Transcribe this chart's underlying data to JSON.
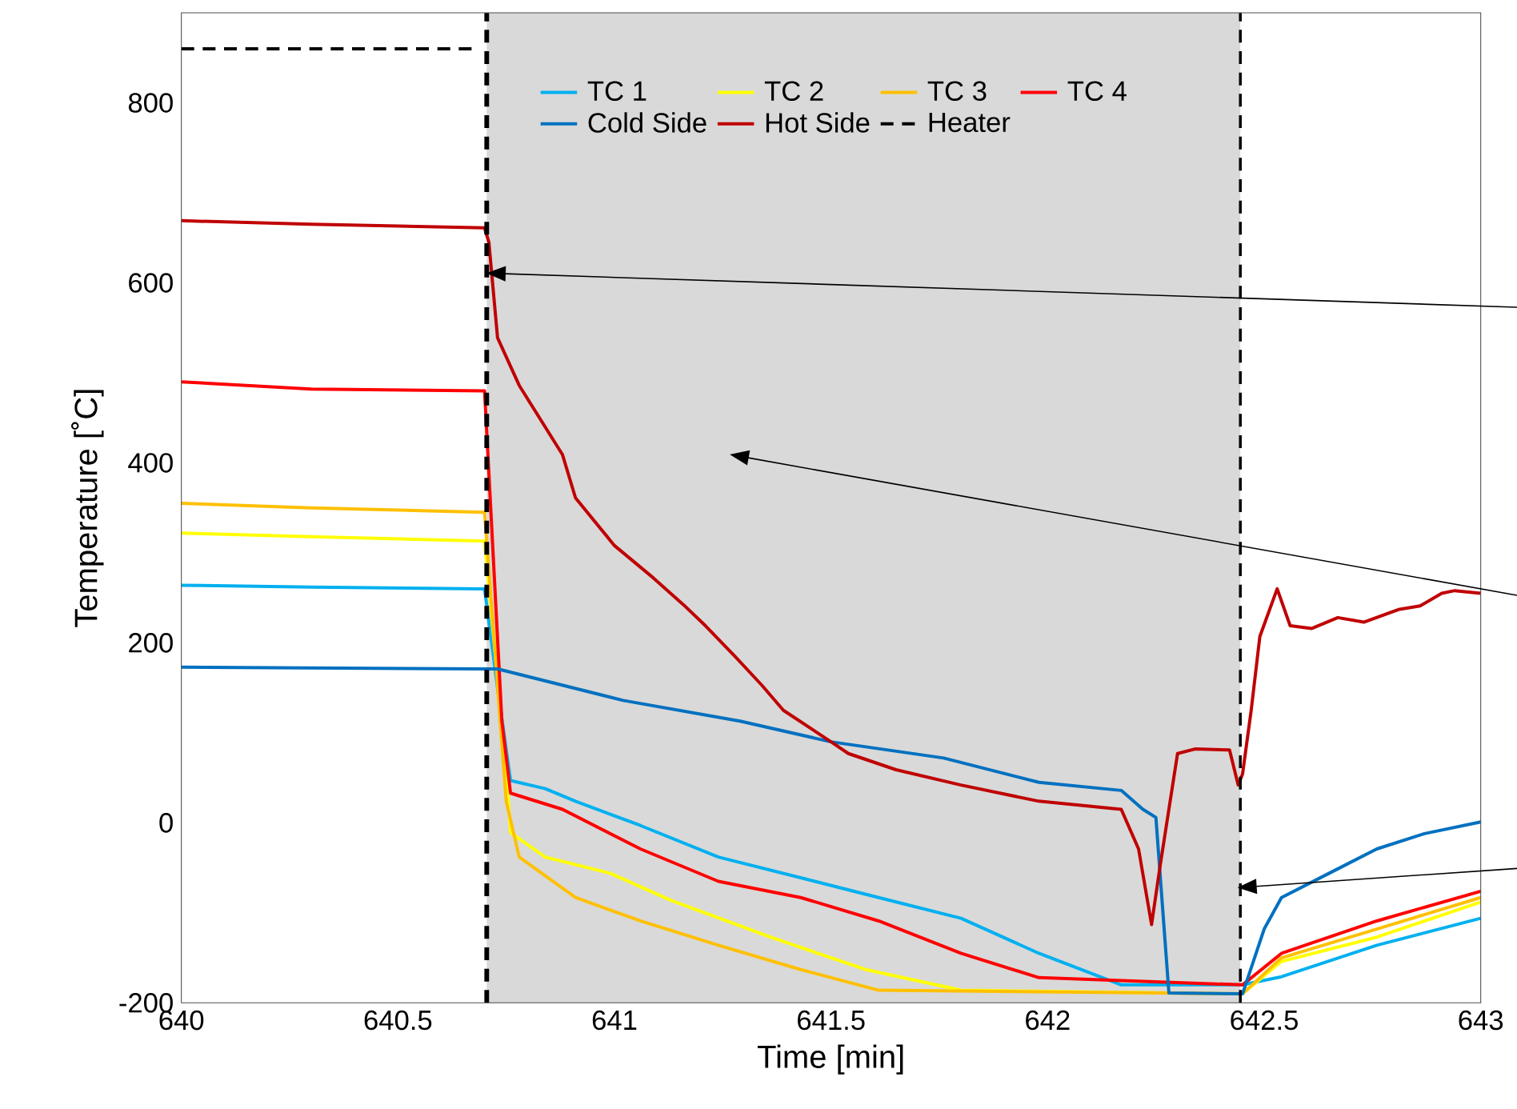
{
  "chart_data": {
    "type": "line",
    "xlabel": "Time [min]",
    "ylabel": "Temperature [˚C]",
    "xlim": [
      640,
      643
    ],
    "xticks": [
      640,
      640.5,
      641,
      641.5,
      642,
      642.5,
      643
    ],
    "ylim": [
      -200,
      900
    ],
    "yticks": [
      -200,
      0,
      200,
      400,
      600,
      800
    ],
    "grid": false,
    "legend": "top",
    "marker": "none",
    "bands": [
      {
        "axis": "x",
        "from": 640.705,
        "to": 642.445,
        "color": "#d9d9d9"
      }
    ],
    "ref_lines": [
      {
        "axis": "x",
        "value": 640.705,
        "color": "#000000",
        "line_style": "dashed"
      },
      {
        "axis": "x",
        "value": 642.445,
        "color": "#000000",
        "line_style": "dashed"
      }
    ],
    "series": [
      {
        "name": "TC 1",
        "color": "#00b0f0",
        "line_style": "solid",
        "x": [
          640,
          640.3,
          640.7,
          640.73,
          640.76,
          640.84,
          640.91,
          641.06,
          641.24,
          641.43,
          641.61,
          641.8,
          641.98,
          642.17,
          642.45,
          642.54,
          642.76,
          643
        ],
        "values": [
          264,
          262,
          260,
          150,
          47,
          38,
          24,
          -3,
          -38,
          -61,
          -83,
          -106,
          -145,
          -180,
          -180,
          -171,
          -136,
          -106
        ]
      },
      {
        "name": "TC 2",
        "color": "#ffff00",
        "line_style": "solid",
        "x": [
          640,
          640.3,
          640.7,
          640.75,
          640.76,
          640.84,
          640.99,
          641.13,
          641.36,
          641.58,
          641.8,
          642.45,
          642.54,
          642.76,
          643
        ],
        "values": [
          322,
          318,
          313,
          59,
          -11,
          -38,
          -56,
          -86,
          -127,
          -163,
          -186,
          -190,
          -154,
          -127,
          -88
        ]
      },
      {
        "name": "TC 3",
        "color": "#ffc000",
        "line_style": "solid",
        "x": [
          640,
          640.3,
          640.7,
          640.75,
          640.78,
          640.91,
          641.06,
          641.24,
          641.43,
          641.61,
          642.45,
          642.54,
          642.76,
          643
        ],
        "values": [
          355,
          350,
          345,
          24,
          -38,
          -83,
          -109,
          -136,
          -163,
          -186,
          -190,
          -150,
          -118,
          -83
        ]
      },
      {
        "name": "TC 4",
        "color": "#ff0000",
        "line_style": "solid",
        "x": [
          640,
          640.3,
          640.7,
          640.74,
          640.76,
          640.88,
          641.06,
          641.24,
          641.43,
          641.61,
          641.8,
          641.98,
          642.45,
          642.54,
          642.76,
          643
        ],
        "values": [
          490,
          482,
          480,
          113,
          33,
          15,
          -29,
          -65,
          -83,
          -109,
          -145,
          -172,
          -180,
          -145,
          -109,
          -76
        ]
      },
      {
        "name": "Cold Side",
        "color": "#0070c0",
        "line_style": "solid",
        "x": [
          640,
          640.7,
          640.73,
          641.02,
          641.29,
          641.5,
          641.76,
          641.98,
          642.17,
          642.22,
          642.25,
          642.28,
          642.45,
          642.5,
          642.54,
          642.65,
          642.76,
          642.87,
          643
        ],
        "values": [
          173,
          171,
          171,
          136,
          113,
          90,
          72,
          45,
          36,
          15,
          6,
          -189,
          -190,
          -118,
          -83,
          -56,
          -29,
          -12,
          1
        ]
      },
      {
        "name": "Hot Side",
        "color": "#c00000",
        "line_style": "solid",
        "x": [
          640,
          640.3,
          640.7,
          640.71,
          640.73,
          640.78,
          640.88,
          640.91,
          641.0,
          641.09,
          641.16,
          641.21,
          641.28,
          641.34,
          641.39,
          641.5,
          641.54,
          641.65,
          641.8,
          641.98,
          642.17,
          642.21,
          642.24,
          642.26,
          642.3,
          642.34,
          642.42,
          642.44,
          642.45,
          642.47,
          642.49,
          642.53,
          642.56,
          642.61,
          642.67,
          642.73,
          642.81,
          642.86,
          642.91,
          642.94,
          643
        ],
        "values": [
          669,
          665,
          661,
          645,
          539,
          486,
          409,
          361,
          308,
          272,
          242,
          219,
          184,
          153,
          125,
          90,
          77,
          59,
          42,
          24,
          15,
          -29,
          -113,
          -47,
          77,
          82,
          81,
          42,
          54,
          125,
          207,
          260,
          219,
          216,
          228,
          223,
          237,
          241,
          255,
          258,
          255
        ]
      },
      {
        "name": "Heater",
        "color": "#000000",
        "line_style": "dashed",
        "x": [
          640,
          640.67
        ],
        "values": [
          860,
          860
        ]
      }
    ]
  }
}
